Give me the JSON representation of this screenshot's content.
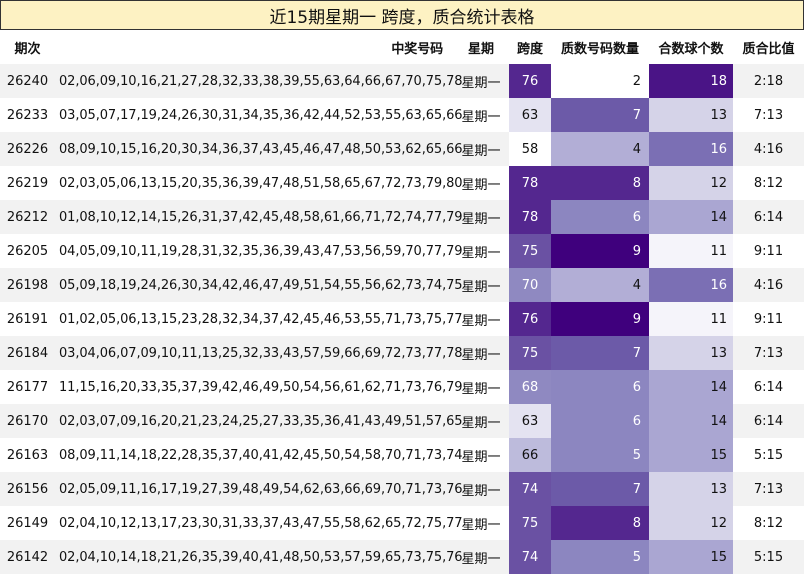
{
  "title": "近15期星期一 跨度，质合统计表格",
  "headers": {
    "period": "期次",
    "numbers": "中奖号码",
    "weekday": "星期",
    "span": "跨度",
    "prime_count": "质数号码数量",
    "composite_count": "合数球个数",
    "ratio": "质合比值"
  },
  "rows": [
    {
      "period": "26240",
      "numbers": "02,06,09,10,16,21,27,28,32,33,38,39,55,63,64,66,67,70,75,78",
      "weekday": "星期一",
      "span": "76",
      "prime": "2",
      "composite": "18",
      "ratio": "2:18"
    },
    {
      "period": "26233",
      "numbers": "03,05,07,17,19,24,26,30,31,34,35,36,42,44,52,53,55,63,65,66",
      "weekday": "星期一",
      "span": "63",
      "prime": "7",
      "composite": "13",
      "ratio": "7:13"
    },
    {
      "period": "26226",
      "numbers": "08,09,10,15,16,20,30,34,36,37,43,45,46,47,48,50,53,62,65,66",
      "weekday": "星期一",
      "span": "58",
      "prime": "4",
      "composite": "16",
      "ratio": "4:16"
    },
    {
      "period": "26219",
      "numbers": "02,03,05,06,13,15,20,35,36,39,47,48,51,58,65,67,72,73,79,80",
      "weekday": "星期一",
      "span": "78",
      "prime": "8",
      "composite": "12",
      "ratio": "8:12"
    },
    {
      "period": "26212",
      "numbers": "01,08,10,12,14,15,26,31,37,42,45,48,58,61,66,71,72,74,77,79",
      "weekday": "星期一",
      "span": "78",
      "prime": "6",
      "composite": "14",
      "ratio": "6:14"
    },
    {
      "period": "26205",
      "numbers": "04,05,09,10,11,19,28,31,32,35,36,39,43,47,53,56,59,70,77,79",
      "weekday": "星期一",
      "span": "75",
      "prime": "9",
      "composite": "11",
      "ratio": "9:11"
    },
    {
      "period": "26198",
      "numbers": "05,09,18,19,24,26,30,34,42,46,47,49,51,54,55,56,62,73,74,75",
      "weekday": "星期一",
      "span": "70",
      "prime": "4",
      "composite": "16",
      "ratio": "4:16"
    },
    {
      "period": "26191",
      "numbers": "01,02,05,06,13,15,23,28,32,34,37,42,45,46,53,55,71,73,75,77",
      "weekday": "星期一",
      "span": "76",
      "prime": "9",
      "composite": "11",
      "ratio": "9:11"
    },
    {
      "period": "26184",
      "numbers": "03,04,06,07,09,10,11,13,25,32,33,43,57,59,66,69,72,73,77,78",
      "weekday": "星期一",
      "span": "75",
      "prime": "7",
      "composite": "13",
      "ratio": "7:13"
    },
    {
      "period": "26177",
      "numbers": "11,15,16,20,33,35,37,39,42,46,49,50,54,56,61,62,71,73,76,79",
      "weekday": "星期一",
      "span": "68",
      "prime": "6",
      "composite": "14",
      "ratio": "6:14"
    },
    {
      "period": "26170",
      "numbers": "02,03,07,09,16,20,21,23,24,25,27,33,35,36,41,43,49,51,57,65",
      "weekday": "星期一",
      "span": "63",
      "prime": "6",
      "composite": "14",
      "ratio": "6:14"
    },
    {
      "period": "26163",
      "numbers": "08,09,11,14,18,22,28,35,37,40,41,42,45,50,54,58,70,71,73,74",
      "weekday": "星期一",
      "span": "66",
      "prime": "5",
      "composite": "15",
      "ratio": "5:15"
    },
    {
      "period": "26156",
      "numbers": "02,05,09,11,16,17,19,27,39,48,49,54,62,63,66,69,70,71,73,76",
      "weekday": "星期一",
      "span": "74",
      "prime": "7",
      "composite": "13",
      "ratio": "7:13"
    },
    {
      "period": "26149",
      "numbers": "02,04,10,12,13,17,23,30,31,33,37,43,47,55,58,62,65,72,75,77",
      "weekday": "星期一",
      "span": "75",
      "prime": "8",
      "composite": "12",
      "ratio": "8:12"
    },
    {
      "period": "26142",
      "numbers": "02,04,10,14,18,21,26,35,39,40,41,48,50,53,57,59,65,73,75,76",
      "weekday": "星期一",
      "span": "74",
      "prime": "5",
      "composite": "15",
      "ratio": "5:15"
    }
  ],
  "heat_colors": {
    "span": [
      "#ffffff",
      "#e4e3f1",
      "#bdbbdc",
      "#8f89c1",
      "#6a51a3",
      "#54278f"
    ],
    "prime": [
      "#ffffff",
      "#dddcee",
      "#b2aed6",
      "#8c86c0",
      "#6c5aa8",
      "#54278f",
      "#3f007d"
    ],
    "composite": [
      "#f5f4fa",
      "#d5d3e8",
      "#aaa6d2",
      "#7b6fb4",
      "#4a1486"
    ]
  }
}
